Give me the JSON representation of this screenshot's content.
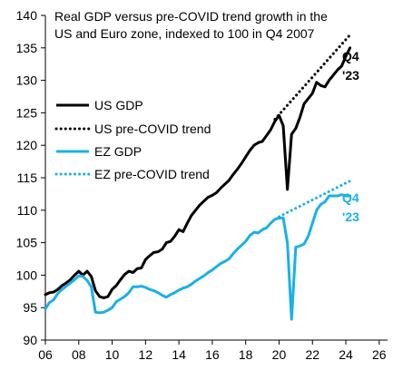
{
  "chart_data": {
    "type": "line",
    "title_lines": [
      "Real GDP versus pre-COVID trend growth in the",
      "US and Euro zone, indexed to 100 in Q4 2007"
    ],
    "xlabel": "",
    "ylabel": "",
    "xlim": [
      2006,
      2026.5
    ],
    "ylim": [
      90,
      140
    ],
    "x_ticks": [
      2006,
      2008,
      2010,
      2012,
      2014,
      2016,
      2018,
      2020,
      2022,
      2024,
      2026
    ],
    "x_tick_labels": [
      "06",
      "08",
      "10",
      "12",
      "14",
      "16",
      "18",
      "20",
      "22",
      "24",
      "26"
    ],
    "y_ticks": [
      90,
      95,
      100,
      105,
      110,
      115,
      120,
      125,
      130,
      135,
      140
    ],
    "y_tick_labels": [
      "90",
      "95",
      "100",
      "105",
      "110",
      "115",
      "120",
      "125",
      "130",
      "135",
      "140"
    ],
    "grid": false,
    "legend_position": "left",
    "colors": {
      "us": "#000000",
      "ez": "#1ab0e8"
    },
    "series": [
      {
        "name": "US GDP",
        "style": "solid",
        "color": "#000000",
        "points": [
          [
            2006.0,
            97.0
          ],
          [
            2006.25,
            97.3
          ],
          [
            2006.5,
            97.4
          ],
          [
            2006.75,
            97.8
          ],
          [
            2007.0,
            98.4
          ],
          [
            2007.25,
            98.8
          ],
          [
            2007.5,
            99.3
          ],
          [
            2007.75,
            100.0
          ],
          [
            2008.0,
            100.6
          ],
          [
            2008.25,
            100.0
          ],
          [
            2008.5,
            100.6
          ],
          [
            2008.75,
            99.8
          ],
          [
            2009.0,
            97.6
          ],
          [
            2009.25,
            96.7
          ],
          [
            2009.5,
            96.5
          ],
          [
            2009.75,
            96.7
          ],
          [
            2010.0,
            97.8
          ],
          [
            2010.25,
            98.4
          ],
          [
            2010.5,
            99.3
          ],
          [
            2010.75,
            100.1
          ],
          [
            2011.0,
            100.6
          ],
          [
            2011.25,
            100.4
          ],
          [
            2011.5,
            101.0
          ],
          [
            2011.75,
            101.1
          ],
          [
            2012.0,
            102.4
          ],
          [
            2012.25,
            103.0
          ],
          [
            2012.5,
            103.5
          ],
          [
            2012.75,
            103.6
          ],
          [
            2013.0,
            104.0
          ],
          [
            2013.25,
            105.0
          ],
          [
            2013.5,
            105.2
          ],
          [
            2013.75,
            106.0
          ],
          [
            2014.0,
            107.0
          ],
          [
            2014.25,
            106.7
          ],
          [
            2014.5,
            108.0
          ],
          [
            2014.75,
            109.2
          ],
          [
            2015.0,
            110.0
          ],
          [
            2015.25,
            110.8
          ],
          [
            2015.5,
            111.4
          ],
          [
            2015.75,
            112.0
          ],
          [
            2016.0,
            112.3
          ],
          [
            2016.25,
            112.7
          ],
          [
            2016.5,
            113.4
          ],
          [
            2016.75,
            114.0
          ],
          [
            2017.0,
            114.6
          ],
          [
            2017.25,
            115.5
          ],
          [
            2017.5,
            116.3
          ],
          [
            2017.75,
            117.2
          ],
          [
            2018.0,
            118.2
          ],
          [
            2018.25,
            119.2
          ],
          [
            2018.5,
            120.0
          ],
          [
            2018.75,
            120.4
          ],
          [
            2019.0,
            120.6
          ],
          [
            2019.25,
            121.5
          ],
          [
            2019.5,
            122.4
          ],
          [
            2019.75,
            123.7
          ],
          [
            2020.0,
            124.6
          ],
          [
            2020.25,
            123.0
          ],
          [
            2020.5,
            113.2
          ],
          [
            2020.75,
            121.7
          ],
          [
            2021.0,
            122.6
          ],
          [
            2021.25,
            124.3
          ],
          [
            2021.5,
            126.4
          ],
          [
            2021.75,
            127.2
          ],
          [
            2022.0,
            128.0
          ],
          [
            2022.25,
            129.7
          ],
          [
            2022.5,
            129.2
          ],
          [
            2022.75,
            129.0
          ],
          [
            2023.0,
            130.0
          ],
          [
            2023.25,
            130.8
          ],
          [
            2023.5,
            131.6
          ],
          [
            2023.75,
            132.2
          ],
          [
            2024.0,
            133.7
          ],
          [
            2024.25,
            135.0
          ]
        ]
      },
      {
        "name": "US pre-COVID trend",
        "style": "dotted",
        "color": "#000000",
        "points": [
          [
            2019.75,
            124.0
          ],
          [
            2024.25,
            137.0
          ]
        ]
      },
      {
        "name": "EZ GDP",
        "style": "solid",
        "color": "#1ab0e8",
        "points": [
          [
            2006.0,
            94.8
          ],
          [
            2006.25,
            95.8
          ],
          [
            2006.5,
            96.2
          ],
          [
            2006.75,
            97.2
          ],
          [
            2007.0,
            97.8
          ],
          [
            2007.25,
            98.3
          ],
          [
            2007.5,
            98.8
          ],
          [
            2007.75,
            99.3
          ],
          [
            2008.0,
            99.9
          ],
          [
            2008.25,
            99.8
          ],
          [
            2008.5,
            99.2
          ],
          [
            2008.75,
            98.2
          ],
          [
            2009.0,
            94.3
          ],
          [
            2009.25,
            94.2
          ],
          [
            2009.5,
            94.3
          ],
          [
            2009.75,
            94.6
          ],
          [
            2010.0,
            95.0
          ],
          [
            2010.25,
            95.9
          ],
          [
            2010.5,
            96.3
          ],
          [
            2010.75,
            96.7
          ],
          [
            2011.0,
            97.3
          ],
          [
            2011.25,
            98.2
          ],
          [
            2011.5,
            98.2
          ],
          [
            2011.75,
            98.3
          ],
          [
            2012.0,
            98.1
          ],
          [
            2012.25,
            97.8
          ],
          [
            2012.5,
            97.6
          ],
          [
            2012.75,
            97.3
          ],
          [
            2013.0,
            96.9
          ],
          [
            2013.25,
            96.6
          ],
          [
            2013.5,
            97.0
          ],
          [
            2013.75,
            97.3
          ],
          [
            2014.0,
            97.7
          ],
          [
            2014.25,
            98.0
          ],
          [
            2014.5,
            98.2
          ],
          [
            2014.75,
            98.6
          ],
          [
            2015.0,
            99.1
          ],
          [
            2015.25,
            99.5
          ],
          [
            2015.5,
            99.9
          ],
          [
            2015.75,
            100.4
          ],
          [
            2016.0,
            100.8
          ],
          [
            2016.25,
            101.3
          ],
          [
            2016.5,
            101.8
          ],
          [
            2016.75,
            102.1
          ],
          [
            2017.0,
            102.5
          ],
          [
            2017.25,
            103.3
          ],
          [
            2017.5,
            104.0
          ],
          [
            2017.75,
            104.6
          ],
          [
            2018.0,
            105.2
          ],
          [
            2018.25,
            106.1
          ],
          [
            2018.5,
            106.6
          ],
          [
            2018.75,
            106.5
          ],
          [
            2019.0,
            107.0
          ],
          [
            2019.25,
            107.3
          ],
          [
            2019.5,
            108.0
          ],
          [
            2019.75,
            108.6
          ],
          [
            2020.0,
            108.8
          ],
          [
            2020.25,
            108.8
          ],
          [
            2020.5,
            105.0
          ],
          [
            2020.75,
            93.2
          ],
          [
            2021.0,
            104.3
          ],
          [
            2021.25,
            104.5
          ],
          [
            2021.5,
            104.8
          ],
          [
            2021.75,
            106.0
          ],
          [
            2022.0,
            108.0
          ],
          [
            2022.25,
            110.0
          ],
          [
            2022.5,
            110.9
          ],
          [
            2022.75,
            111.3
          ],
          [
            2023.0,
            112.2
          ],
          [
            2023.25,
            112.2
          ],
          [
            2023.5,
            112.2
          ],
          [
            2023.75,
            112.4
          ],
          [
            2024.0,
            112.2
          ],
          [
            2024.25,
            112.2
          ]
        ]
      },
      {
        "name": "EZ pre-COVID trend",
        "style": "dotted",
        "color": "#1ab0e8",
        "points": [
          [
            2020.0,
            109.0
          ],
          [
            2024.25,
            114.5
          ]
        ]
      }
    ],
    "end_labels": [
      {
        "text_line1": "Q4",
        "text_line2": "'23",
        "series": "US GDP"
      },
      {
        "text_line1": "Q4",
        "text_line2": "'23",
        "series": "EZ GDP"
      }
    ]
  }
}
